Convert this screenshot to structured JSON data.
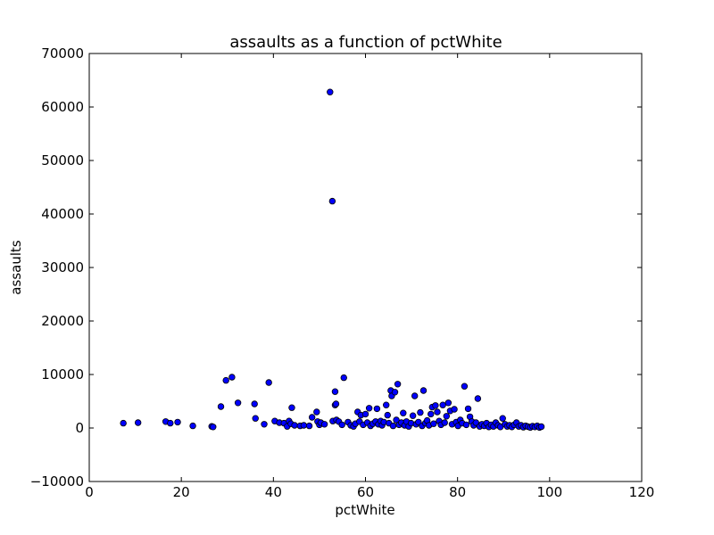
{
  "chart_data": {
    "type": "scatter",
    "title": "assaults as a function of pctWhite",
    "xlabel": "pctWhite",
    "ylabel": "assaults",
    "xlim": [
      0,
      120
    ],
    "ylim": [
      -10000,
      70000
    ],
    "xticks": [
      0,
      20,
      40,
      60,
      80,
      100,
      120
    ],
    "yticks": [
      -10000,
      0,
      10000,
      20000,
      30000,
      40000,
      50000,
      60000,
      70000
    ],
    "xtick_labels": [
      "0",
      "20",
      "40",
      "60",
      "80",
      "100",
      "120"
    ],
    "ytick_labels": [
      "−10000",
      "0",
      "10000",
      "20000",
      "30000",
      "40000",
      "50000",
      "60000",
      "70000"
    ],
    "grid": false,
    "marker_color": "#0000ff",
    "points": [
      {
        "x": 7.4,
        "y": 900
      },
      {
        "x": 10.6,
        "y": 1000
      },
      {
        "x": 16.6,
        "y": 1200
      },
      {
        "x": 17.6,
        "y": 900
      },
      {
        "x": 19.2,
        "y": 1100
      },
      {
        "x": 22.5,
        "y": 400
      },
      {
        "x": 26.6,
        "y": 300
      },
      {
        "x": 26.9,
        "y": 200
      },
      {
        "x": 28.6,
        "y": 4000
      },
      {
        "x": 29.7,
        "y": 8900
      },
      {
        "x": 31.0,
        "y": 9500
      },
      {
        "x": 32.3,
        "y": 4700
      },
      {
        "x": 35.9,
        "y": 4500
      },
      {
        "x": 36.1,
        "y": 1800
      },
      {
        "x": 38.0,
        "y": 700
      },
      {
        "x": 39.0,
        "y": 8500
      },
      {
        "x": 40.3,
        "y": 1300
      },
      {
        "x": 41.3,
        "y": 1000
      },
      {
        "x": 42.3,
        "y": 900
      },
      {
        "x": 43.0,
        "y": 300
      },
      {
        "x": 43.4,
        "y": 1300
      },
      {
        "x": 43.8,
        "y": 800
      },
      {
        "x": 44.0,
        "y": 3800
      },
      {
        "x": 44.6,
        "y": 500
      },
      {
        "x": 45.8,
        "y": 400
      },
      {
        "x": 46.6,
        "y": 500
      },
      {
        "x": 47.8,
        "y": 400
      },
      {
        "x": 48.4,
        "y": 2000
      },
      {
        "x": 49.4,
        "y": 3000
      },
      {
        "x": 49.6,
        "y": 1200
      },
      {
        "x": 50.0,
        "y": 600
      },
      {
        "x": 50.3,
        "y": 1000
      },
      {
        "x": 51.1,
        "y": 700
      },
      {
        "x": 52.3,
        "y": 62800
      },
      {
        "x": 52.8,
        "y": 42400
      },
      {
        "x": 52.9,
        "y": 1300
      },
      {
        "x": 53.4,
        "y": 6800
      },
      {
        "x": 53.4,
        "y": 4300
      },
      {
        "x": 53.6,
        "y": 4500
      },
      {
        "x": 53.7,
        "y": 1500
      },
      {
        "x": 54.2,
        "y": 1200
      },
      {
        "x": 54.9,
        "y": 600
      },
      {
        "x": 55.3,
        "y": 9400
      },
      {
        "x": 56.2,
        "y": 1100
      },
      {
        "x": 56.8,
        "y": 500
      },
      {
        "x": 57.4,
        "y": 300
      },
      {
        "x": 57.8,
        "y": 800
      },
      {
        "x": 58.3,
        "y": 3000
      },
      {
        "x": 58.7,
        "y": 1200
      },
      {
        "x": 59.0,
        "y": 2400
      },
      {
        "x": 59.5,
        "y": 600
      },
      {
        "x": 60.0,
        "y": 2600
      },
      {
        "x": 60.4,
        "y": 1000
      },
      {
        "x": 60.8,
        "y": 3700
      },
      {
        "x": 61.1,
        "y": 400
      },
      {
        "x": 61.6,
        "y": 800
      },
      {
        "x": 62.2,
        "y": 1200
      },
      {
        "x": 62.5,
        "y": 3600
      },
      {
        "x": 62.8,
        "y": 700
      },
      {
        "x": 63.3,
        "y": 1300
      },
      {
        "x": 63.6,
        "y": 500
      },
      {
        "x": 64.0,
        "y": 1100
      },
      {
        "x": 64.5,
        "y": 4300
      },
      {
        "x": 64.8,
        "y": 2400
      },
      {
        "x": 65.1,
        "y": 900
      },
      {
        "x": 65.5,
        "y": 7000
      },
      {
        "x": 65.7,
        "y": 6000
      },
      {
        "x": 66.0,
        "y": 400
      },
      {
        "x": 66.4,
        "y": 6700
      },
      {
        "x": 66.7,
        "y": 1500
      },
      {
        "x": 67.0,
        "y": 8200
      },
      {
        "x": 67.3,
        "y": 600
      },
      {
        "x": 67.8,
        "y": 1000
      },
      {
        "x": 68.2,
        "y": 2800
      },
      {
        "x": 68.5,
        "y": 500
      },
      {
        "x": 68.9,
        "y": 1200
      },
      {
        "x": 69.4,
        "y": 300
      },
      {
        "x": 69.9,
        "y": 900
      },
      {
        "x": 70.3,
        "y": 2300
      },
      {
        "x": 70.7,
        "y": 6000
      },
      {
        "x": 71.0,
        "y": 700
      },
      {
        "x": 71.5,
        "y": 1100
      },
      {
        "x": 71.9,
        "y": 2900
      },
      {
        "x": 72.3,
        "y": 400
      },
      {
        "x": 72.6,
        "y": 7000
      },
      {
        "x": 73.0,
        "y": 900
      },
      {
        "x": 73.4,
        "y": 1400
      },
      {
        "x": 73.8,
        "y": 500
      },
      {
        "x": 74.2,
        "y": 2600
      },
      {
        "x": 74.5,
        "y": 3900
      },
      {
        "x": 74.8,
        "y": 800
      },
      {
        "x": 75.2,
        "y": 4200
      },
      {
        "x": 75.6,
        "y": 3000
      },
      {
        "x": 76.0,
        "y": 1300
      },
      {
        "x": 76.4,
        "y": 600
      },
      {
        "x": 76.8,
        "y": 4300
      },
      {
        "x": 77.2,
        "y": 1000
      },
      {
        "x": 77.6,
        "y": 2200
      },
      {
        "x": 78.0,
        "y": 4700
      },
      {
        "x": 78.4,
        "y": 3200
      },
      {
        "x": 78.8,
        "y": 700
      },
      {
        "x": 79.3,
        "y": 3500
      },
      {
        "x": 79.7,
        "y": 1100
      },
      {
        "x": 80.1,
        "y": 400
      },
      {
        "x": 80.6,
        "y": 1500
      },
      {
        "x": 81.0,
        "y": 900
      },
      {
        "x": 81.5,
        "y": 7800
      },
      {
        "x": 81.9,
        "y": 600
      },
      {
        "x": 82.3,
        "y": 3600
      },
      {
        "x": 82.7,
        "y": 2100
      },
      {
        "x": 83.1,
        "y": 1200
      },
      {
        "x": 83.5,
        "y": 500
      },
      {
        "x": 84.0,
        "y": 1000
      },
      {
        "x": 84.4,
        "y": 5500
      },
      {
        "x": 84.8,
        "y": 300
      },
      {
        "x": 85.3,
        "y": 700
      },
      {
        "x": 85.8,
        "y": 400
      },
      {
        "x": 86.3,
        "y": 900
      },
      {
        "x": 86.8,
        "y": 200
      },
      {
        "x": 87.3,
        "y": 600
      },
      {
        "x": 87.8,
        "y": 300
      },
      {
        "x": 88.3,
        "y": 1000
      },
      {
        "x": 88.8,
        "y": 500
      },
      {
        "x": 89.3,
        "y": 200
      },
      {
        "x": 89.8,
        "y": 1800
      },
      {
        "x": 90.3,
        "y": 700
      },
      {
        "x": 90.8,
        "y": 300
      },
      {
        "x": 91.3,
        "y": 500
      },
      {
        "x": 91.8,
        "y": 200
      },
      {
        "x": 92.3,
        "y": 600
      },
      {
        "x": 92.8,
        "y": 1000
      },
      {
        "x": 93.3,
        "y": 300
      },
      {
        "x": 93.8,
        "y": 500
      },
      {
        "x": 94.3,
        "y": 150
      },
      {
        "x": 94.8,
        "y": 400
      },
      {
        "x": 95.3,
        "y": 250
      },
      {
        "x": 95.8,
        "y": 100
      },
      {
        "x": 96.3,
        "y": 350
      },
      {
        "x": 96.8,
        "y": 200
      },
      {
        "x": 97.3,
        "y": 400
      },
      {
        "x": 97.8,
        "y": 100
      },
      {
        "x": 98.2,
        "y": 250
      }
    ]
  }
}
